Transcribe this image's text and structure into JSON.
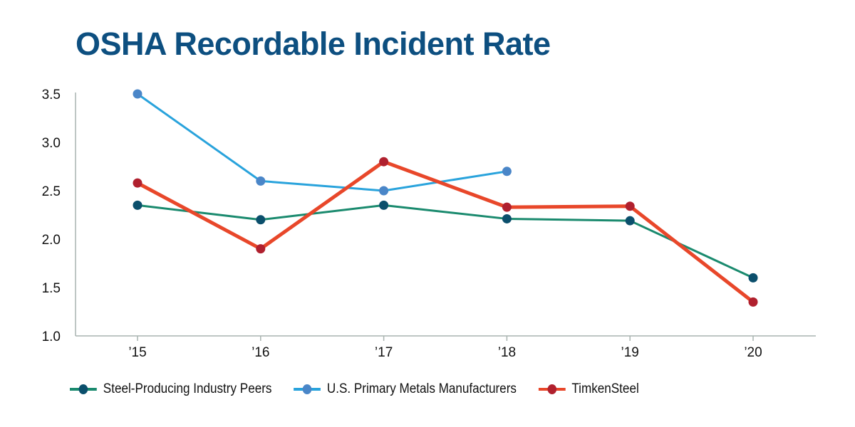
{
  "chart_data": {
    "type": "line",
    "title": "OSHA Recordable Incident Rate",
    "xlabel": "",
    "ylabel": "",
    "categories": [
      "’15",
      "’16",
      "’17",
      "’18",
      "’19",
      "’20"
    ],
    "ylim": [
      1.0,
      3.5
    ],
    "yticks": [
      "1.0",
      "1.5",
      "2.0",
      "2.5",
      "3.0",
      "3.5"
    ],
    "ytick_values": [
      1.0,
      1.5,
      2.0,
      2.5,
      3.0,
      3.5
    ],
    "grid": false,
    "legend_position": "bottom",
    "series": [
      {
        "name": "Steel-Producing Industry Peers",
        "values": [
          2.35,
          2.2,
          2.35,
          2.21,
          2.19,
          1.6
        ],
        "line_color": "#1a8a6e",
        "dot_color": "#0b4f6c",
        "line_width": 3
      },
      {
        "name": "U.S. Primary Metals Manufacturers",
        "values": [
          3.5,
          2.6,
          2.5,
          2.7,
          null,
          null
        ],
        "line_color": "#29a3dc",
        "dot_color": "#4a86c8",
        "line_width": 3
      },
      {
        "name": "TimkenSteel",
        "values": [
          2.58,
          1.9,
          2.8,
          2.33,
          2.34,
          1.35
        ],
        "line_color": "#e8472a",
        "dot_color": "#b0202e",
        "line_width": 5
      }
    ]
  }
}
